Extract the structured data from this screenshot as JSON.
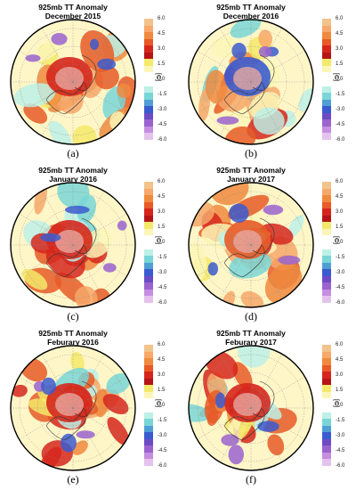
{
  "colorbar": {
    "ticks": [
      "6.0",
      "4.5",
      "3.0",
      "1.5",
      "0.0",
      "-1.5",
      "-3.0",
      "-4.5",
      "-6.0"
    ],
    "unit": "[C]",
    "levels": [
      "#f2c38a",
      "#f7a86a",
      "#f08a3e",
      "#e85a26",
      "#d6261c",
      "#b51516",
      "#f4e96a",
      "#fbf6b7",
      "#ffffff",
      "#ffffff",
      "#bdf0e6",
      "#79d6d6",
      "#4f9fd6",
      "#3a5bd0",
      "#6c4bc4",
      "#9a63d0",
      "#c58ee0",
      "#e5c2ee"
    ]
  },
  "panels": [
    {
      "id": "a",
      "title1": "925mb TT Anomaly",
      "title2": "December 2015",
      "label": "(a)",
      "accent": "#d6261c"
    },
    {
      "id": "b",
      "title1": "925mb TT Anomaly",
      "title2": "December 2016",
      "label": "(b)",
      "accent": "#3a5bd0"
    },
    {
      "id": "c",
      "title1": "925mb TT Anomaly",
      "title2": "January 2016",
      "label": "(c)",
      "accent": "#d6261c"
    },
    {
      "id": "d",
      "title1": "925mb TT Anomaly",
      "title2": "January 2017",
      "label": "(d)",
      "accent": "#e85a26"
    },
    {
      "id": "e",
      "title1": "925mb TT Anomaly",
      "title2": "Feburary 2016",
      "label": "(e)",
      "accent": "#d6261c"
    },
    {
      "id": "f",
      "title1": "925mb TT Anomaly",
      "title2": "Feburary 2017",
      "label": "(f)",
      "accent": "#d6261c"
    }
  ]
}
